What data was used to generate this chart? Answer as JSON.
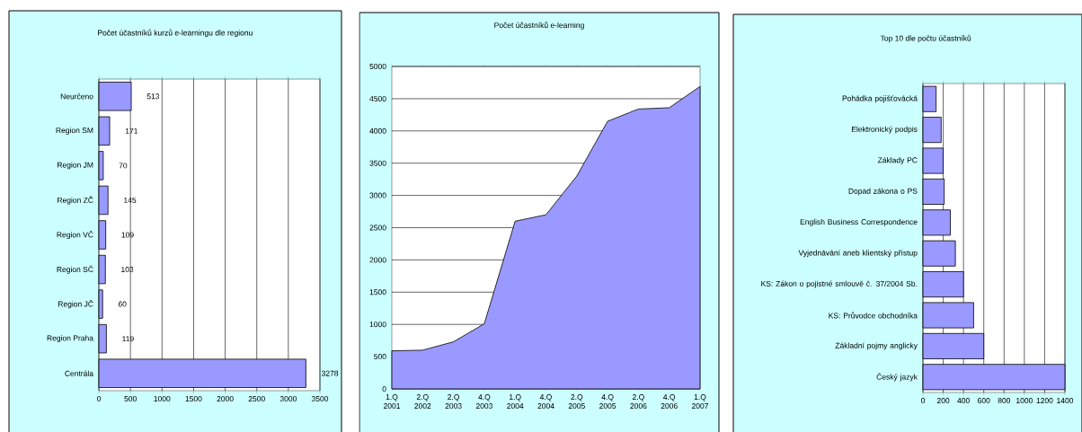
{
  "chart_data": [
    {
      "type": "bar",
      "orientation": "horizontal",
      "title": "Počet účastníků kurzů e-learningu dle regionu",
      "categories": [
        "Neurčeno",
        "Region SM",
        "Region JM",
        "Region ZČ",
        "Region VČ",
        "Region SČ",
        "Region JČ",
        "Region Praha",
        "Centrála"
      ],
      "values": [
        513,
        171,
        70,
        145,
        109,
        103,
        60,
        119,
        3278
      ],
      "color": "#9999ff",
      "xlim": [
        0,
        3500
      ],
      "xticks": [
        0,
        500,
        1000,
        1500,
        2000,
        2500,
        3000,
        3500
      ],
      "grid": "x",
      "data_labels": true
    },
    {
      "type": "area",
      "title": "Počet účastníků e-learning",
      "categories": [
        "1.Q 2001",
        "2.Q 2002",
        "2.Q 2003",
        "4.Q 2003",
        "1.Q 2004",
        "4.Q 2004",
        "2.Q 2005",
        "4.Q 2005",
        "2.Q 2006",
        "4.Q 2006",
        "1.Q 2007"
      ],
      "values": [
        590,
        600,
        730,
        1010,
        2600,
        2700,
        3300,
        4150,
        4340,
        4360,
        4690
      ],
      "color": "#9999ff",
      "ylim": [
        0,
        5000
      ],
      "yticks": [
        0,
        500,
        1000,
        1500,
        2000,
        2500,
        3000,
        3500,
        4000,
        4500,
        5000
      ],
      "grid": "y"
    },
    {
      "type": "bar",
      "orientation": "horizontal",
      "title": "Top 10 dle počtu účastníků",
      "categories": [
        "Pohádka pojišťovácká",
        "Elektronický podpis",
        "Základy PC",
        "Dopad zákona o PS",
        "English Business Correspondence",
        "Vyjednávání aneb klientský přístup",
        "KS: Zákon o pojistné smlouvě č. 37/2004 Sb.",
        "KS: Průvodce obchodníka",
        "Základní pojmy anglicky",
        "Český jazyk"
      ],
      "values": [
        130,
        180,
        200,
        210,
        270,
        320,
        400,
        500,
        600,
        1400
      ],
      "color": "#9999ff",
      "xlim": [
        0,
        1400
      ],
      "xticks": [
        0,
        200,
        400,
        600,
        800,
        1000,
        1200,
        1400
      ],
      "grid": "x"
    }
  ]
}
